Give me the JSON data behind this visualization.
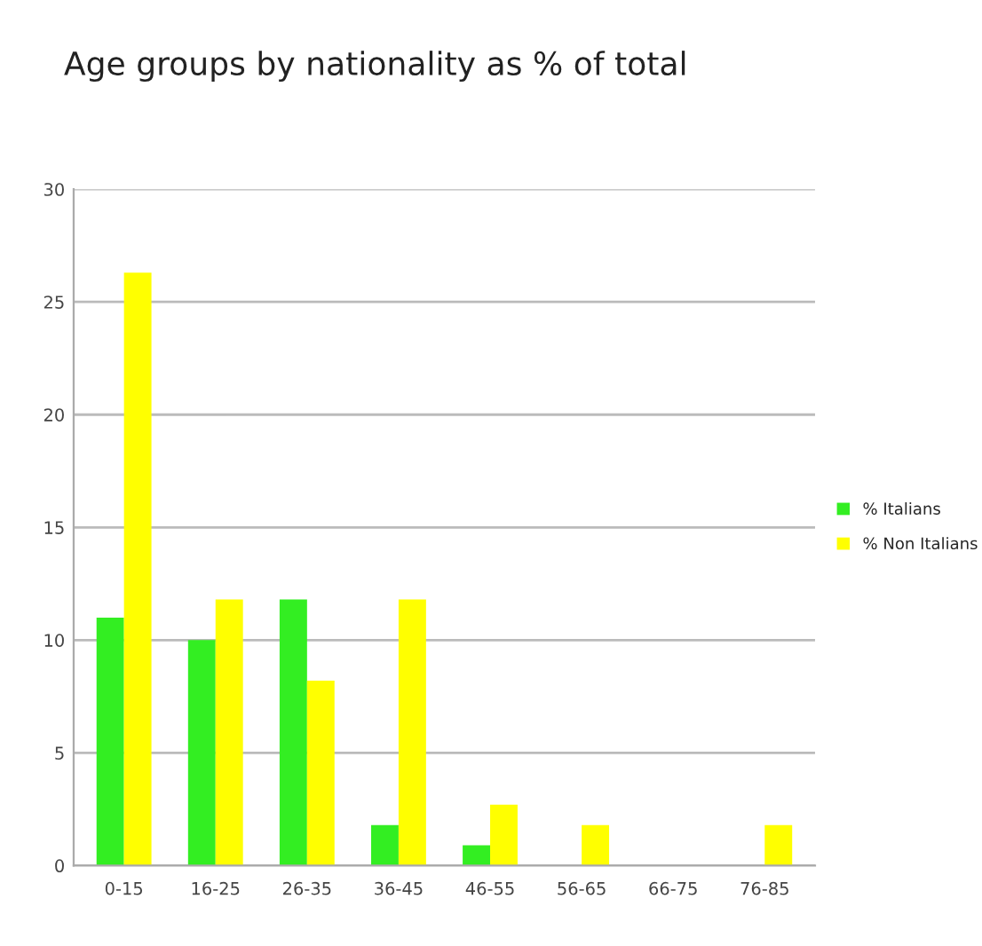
{
  "chart_data": {
    "type": "bar",
    "title": "Age groups by nationality as % of total",
    "categories": [
      "0-15",
      "16-25",
      "26-35",
      "36-45",
      "46-55",
      "56-65",
      "66-75",
      "76-85"
    ],
    "series": [
      {
        "name": "% Italians",
        "color": "#33ee22",
        "values": [
          11,
          10,
          11.8,
          1.8,
          0.9,
          null,
          null,
          null
        ]
      },
      {
        "name": "% Non Italians",
        "color": "#ffff00",
        "values": [
          26.3,
          11.8,
          8.2,
          11.8,
          2.7,
          1.8,
          null,
          1.8
        ]
      }
    ],
    "ylim": [
      0,
      30
    ],
    "yticks": [
      0,
      5,
      10,
      15,
      20,
      25,
      30
    ],
    "grid": "y",
    "legend": "right"
  }
}
